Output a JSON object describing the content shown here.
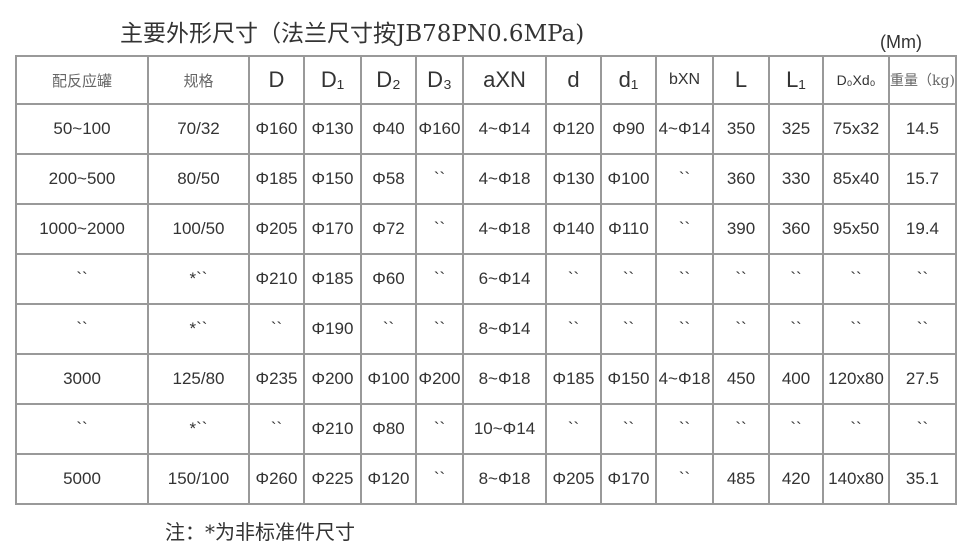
{
  "title": "主要外形尺寸（法兰尺寸按JB78PN0.6MPa)",
  "unit": "(Mm)",
  "headers": [
    "配反应罐",
    "规格",
    "D",
    "D₁",
    "D₂",
    "D₃",
    "aXN",
    "d",
    "d₁",
    "bXN",
    "L",
    "L₁",
    "D₀Xd₀",
    "重量（kg)"
  ],
  "rows": [
    [
      "50~100",
      "70/32",
      "Φ160",
      "Φ130",
      "Φ40",
      "Φ160",
      "4~Φ14",
      "Φ120",
      "Φ90",
      "4~Φ14",
      "350",
      "325",
      "75x32",
      "14.5"
    ],
    [
      "200~500",
      "80/50",
      "Φ185",
      "Φ150",
      "Φ58",
      "``",
      "4~Φ18",
      "Φ130",
      "Φ100",
      "``",
      "360",
      "330",
      "85x40",
      "15.7"
    ],
    [
      "1000~2000",
      "100/50",
      "Φ205",
      "Φ170",
      "Φ72",
      "``",
      "4~Φ18",
      "Φ140",
      "Φ110",
      "``",
      "390",
      "360",
      "95x50",
      "19.4"
    ],
    [
      "``",
      "*``",
      "Φ210",
      "Φ185",
      "Φ60",
      "``",
      "6~Φ14",
      "``",
      "``",
      "``",
      "``",
      "``",
      "``",
      "``"
    ],
    [
      "``",
      "*``",
      "``",
      "Φ190",
      "``",
      "``",
      "8~Φ14",
      "``",
      "``",
      "``",
      "``",
      "``",
      "``",
      "``"
    ],
    [
      "3000",
      "125/80",
      "Φ235",
      "Φ200",
      "Φ100",
      "Φ200",
      "8~Φ18",
      "Φ185",
      "Φ150",
      "4~Φ18",
      "450",
      "400",
      "120x80",
      "27.5"
    ],
    [
      "``",
      "*``",
      "``",
      "Φ210",
      "Φ80",
      "``",
      "10~Φ14",
      "``",
      "``",
      "``",
      "``",
      "``",
      "``",
      "``"
    ],
    [
      "5000",
      "150/100",
      "Φ260",
      "Φ225",
      "Φ120",
      "``",
      "8~Φ18",
      "Φ205",
      "Φ170",
      "``",
      "485",
      "420",
      "140x80",
      "35.1"
    ]
  ],
  "note": "注：*为非标准件尺寸"
}
